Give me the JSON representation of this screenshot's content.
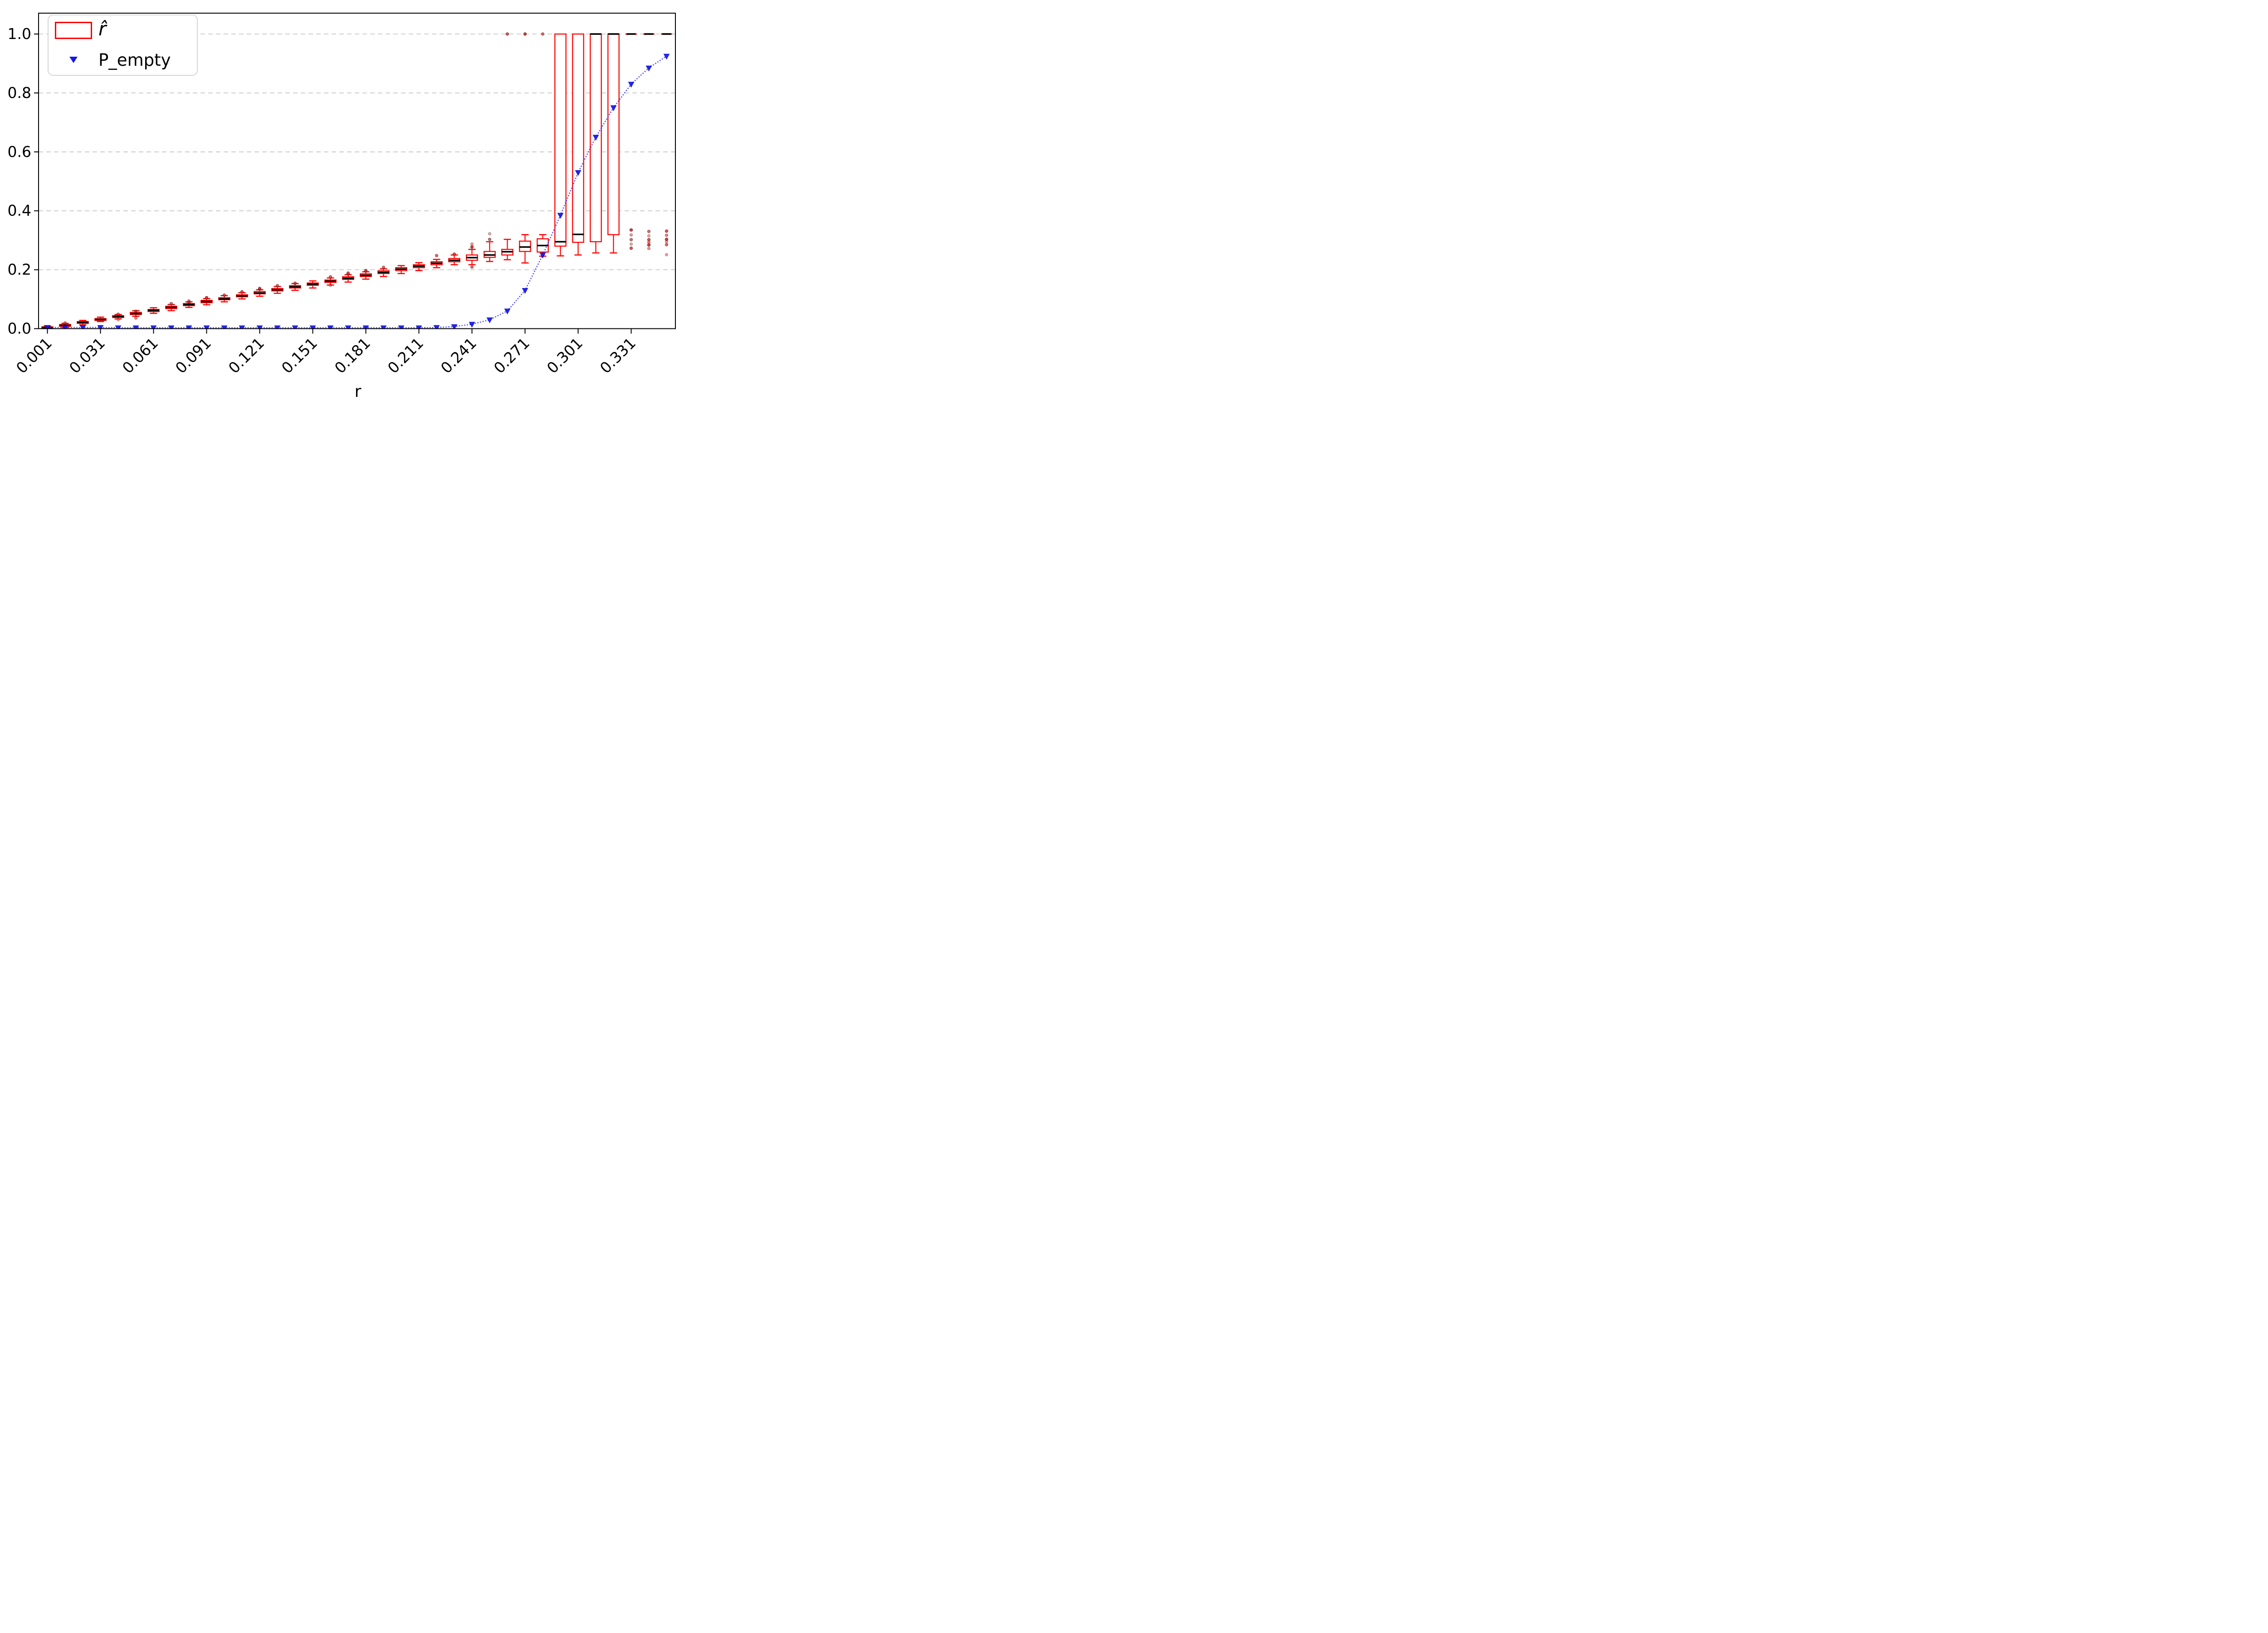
{
  "chart_data": {
    "type": "boxplot",
    "title": "",
    "xlabel": "r",
    "ylabel": "",
    "ylim": [
      0,
      1.07
    ],
    "grid": {
      "axis": "y",
      "style": "dashed",
      "color": "#c9c9c9"
    },
    "legend": {
      "position": "upper-left",
      "entries": [
        {
          "label": "r̂",
          "marker": "red-open-box"
        },
        {
          "label": "P_empty",
          "marker": "blue-down-triangle"
        }
      ]
    },
    "colors": {
      "box_edge": "#ff0000",
      "median": "#000000",
      "whisker": "#ff0000",
      "flier_fill": "#ff1a1a",
      "flier_edge": "#222222",
      "p_empty_line": "#3333ff",
      "p_empty_marker": "#1414f0",
      "grid": "#c9c9c9",
      "spine": "#000000"
    },
    "yticks": [
      "0.0",
      "0.2",
      "0.4",
      "0.6",
      "0.8",
      "1.0"
    ],
    "ytick_values": [
      0.0,
      0.2,
      0.4,
      0.6,
      0.8,
      1.0
    ],
    "xtick_labels": [
      "0.001",
      "0.031",
      "0.061",
      "0.091",
      "0.121",
      "0.151",
      "0.181",
      "0.211",
      "0.241",
      "0.271",
      "0.301",
      "0.331"
    ],
    "xtick_every": 3,
    "positions": [
      0.001,
      0.011,
      0.021,
      0.031,
      0.041,
      0.051,
      0.061,
      0.071,
      0.081,
      0.091,
      0.101,
      0.111,
      0.121,
      0.131,
      0.141,
      0.151,
      0.161,
      0.171,
      0.181,
      0.191,
      0.201,
      0.211,
      0.221,
      0.231,
      0.241,
      0.251,
      0.261,
      0.271,
      0.281,
      0.291,
      0.301,
      0.311,
      0.321,
      0.331,
      0.341,
      0.351
    ],
    "box_format": [
      "whisker_low",
      "q1",
      "median",
      "q3",
      "whisker_high"
    ],
    "boxes": [
      [
        0.0,
        0.0,
        0.004,
        0.006,
        0.009
      ],
      [
        0.004,
        0.008,
        0.011,
        0.014,
        0.018
      ],
      [
        0.013,
        0.018,
        0.021,
        0.024,
        0.028
      ],
      [
        0.024,
        0.028,
        0.031,
        0.034,
        0.039
      ],
      [
        0.033,
        0.038,
        0.041,
        0.044,
        0.048
      ],
      [
        0.042,
        0.048,
        0.051,
        0.055,
        0.061
      ],
      [
        0.052,
        0.058,
        0.062,
        0.065,
        0.071
      ],
      [
        0.061,
        0.068,
        0.072,
        0.076,
        0.082
      ],
      [
        0.072,
        0.078,
        0.082,
        0.085,
        0.091
      ],
      [
        0.081,
        0.088,
        0.092,
        0.096,
        0.102
      ],
      [
        0.091,
        0.098,
        0.101,
        0.105,
        0.112
      ],
      [
        0.101,
        0.108,
        0.111,
        0.115,
        0.122
      ],
      [
        0.11,
        0.118,
        0.121,
        0.126,
        0.132
      ],
      [
        0.12,
        0.128,
        0.132,
        0.136,
        0.143
      ],
      [
        0.13,
        0.138,
        0.142,
        0.146,
        0.153
      ],
      [
        0.138,
        0.147,
        0.151,
        0.155,
        0.162
      ],
      [
        0.148,
        0.157,
        0.161,
        0.165,
        0.172
      ],
      [
        0.158,
        0.167,
        0.171,
        0.176,
        0.183
      ],
      [
        0.168,
        0.177,
        0.181,
        0.186,
        0.193
      ],
      [
        0.177,
        0.187,
        0.191,
        0.196,
        0.203
      ],
      [
        0.187,
        0.197,
        0.202,
        0.207,
        0.214
      ],
      [
        0.197,
        0.207,
        0.212,
        0.217,
        0.224
      ],
      [
        0.207,
        0.217,
        0.222,
        0.227,
        0.235
      ],
      [
        0.217,
        0.227,
        0.232,
        0.238,
        0.25
      ],
      [
        0.217,
        0.232,
        0.241,
        0.25,
        0.269
      ],
      [
        0.228,
        0.242,
        0.25,
        0.262,
        0.295
      ],
      [
        0.234,
        0.25,
        0.261,
        0.269,
        0.303
      ],
      [
        0.223,
        0.262,
        0.277,
        0.297,
        0.319
      ],
      [
        0.246,
        0.26,
        0.282,
        0.305,
        0.319
      ],
      [
        0.247,
        0.28,
        0.295,
        1.0,
        1.0
      ],
      [
        0.25,
        0.293,
        0.32,
        1.0,
        1.0
      ],
      [
        0.257,
        0.295,
        1.0,
        1.0,
        1.0
      ],
      [
        0.257,
        0.319,
        1.0,
        1.0,
        1.0
      ],
      [
        1.0,
        1.0,
        1.0,
        1.0,
        1.0
      ],
      [
        1.0,
        1.0,
        1.0,
        1.0,
        1.0
      ],
      [
        1.0,
        1.0,
        1.0,
        1.0,
        1.0
      ]
    ],
    "fliers": [
      [],
      [
        0.019
      ],
      [],
      [],
      [
        0.049,
        0.03
      ],
      [
        0.059,
        0.036
      ],
      [],
      [
        0.085
      ],
      [
        0.09,
        0.094
      ],
      [
        0.105
      ],
      [
        0.114
      ],
      [
        0.125
      ],
      [
        0.135,
        0.137
      ],
      [
        0.146
      ],
      [
        0.154
      ],
      [],
      [
        0.176,
        0.147
      ],
      [
        0.186,
        0.189
      ],
      [
        0.197
      ],
      [
        0.208
      ],
      [],
      [],
      [
        0.248
      ],
      [
        0.253
      ],
      [
        0.277,
        0.287,
        0.209
      ],
      [
        0.303,
        0.322
      ],
      [
        1.0
      ],
      [
        1.0
      ],
      [
        1.0
      ],
      [],
      [],
      [],
      [],
      [
        0.335,
        0.318,
        0.302,
        0.287,
        0.273
      ],
      [
        0.33,
        0.315,
        0.302,
        0.293,
        0.284,
        0.272
      ],
      [
        0.331,
        0.317,
        0.303,
        0.295,
        0.285,
        0.251
      ]
    ],
    "p_empty": [
      0.004,
      0.004,
      0.004,
      0.004,
      0.003,
      0.003,
      0.003,
      0.003,
      0.003,
      0.003,
      0.003,
      0.003,
      0.003,
      0.003,
      0.003,
      0.003,
      0.003,
      0.003,
      0.003,
      0.003,
      0.003,
      0.003,
      0.004,
      0.007,
      0.015,
      0.03,
      0.06,
      0.13,
      0.25,
      0.385,
      0.53,
      0.65,
      0.75,
      0.83,
      0.885,
      0.925
    ]
  }
}
